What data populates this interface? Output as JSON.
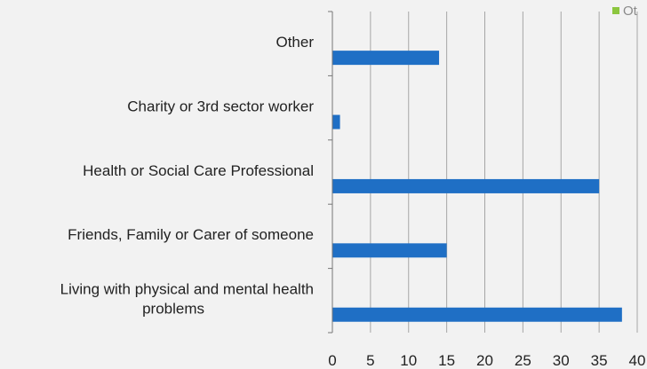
{
  "chart_data": {
    "type": "bar",
    "orientation": "horizontal",
    "categories": [
      "Other",
      "Charity or 3rd sector worker",
      "Health or Social Care Professional",
      "Friends, Family or Carer of someone",
      "Living with physical and mental health problems"
    ],
    "series": [
      {
        "name": "Ot",
        "values": [
          14,
          1,
          35,
          15,
          38
        ],
        "color": "#1f6fc5"
      }
    ],
    "xlim": [
      0,
      40
    ],
    "x_ticks": [
      "0",
      "5",
      "10",
      "15",
      "20",
      "25",
      "30",
      "35",
      "40"
    ],
    "grid": true,
    "legend": {
      "position": "top-right",
      "marker_color": "#8cc63f"
    },
    "colors": {
      "background": "#f2f2f2",
      "grid": "#a6a6a6",
      "text": "#222222"
    }
  }
}
